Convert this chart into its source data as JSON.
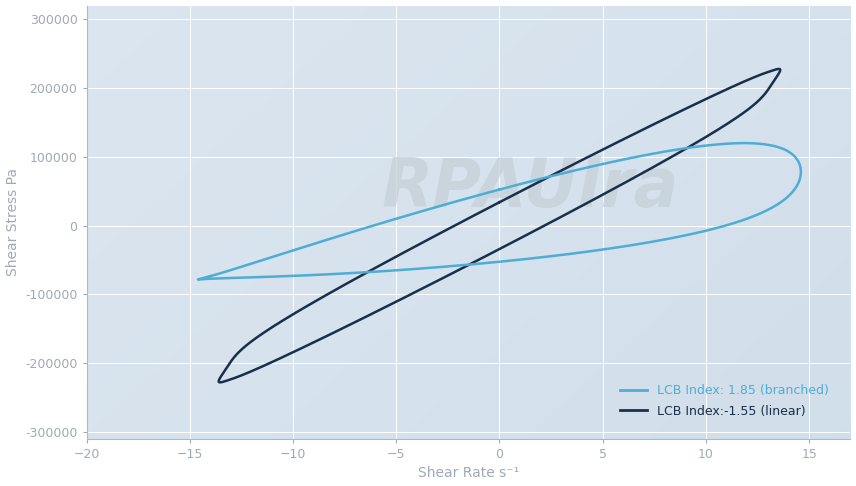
{
  "xlabel": "Shear Rate s⁻¹",
  "ylabel": "Shear Stress Pa",
  "xlim": [
    -20,
    17
  ],
  "ylim": [
    -310000,
    320000
  ],
  "yticks": [
    -300000,
    -200000,
    -100000,
    0,
    100000,
    200000,
    300000
  ],
  "xticks": [
    -20,
    -15,
    -10,
    -5,
    0,
    5,
    10,
    15
  ],
  "curve_branched_color": "#4eadd4",
  "curve_linear_color": "#1b2e4a",
  "legend_label_branched": "LCB Index: 1.85 (branched)",
  "legend_label_linear": "LCB Index:-1.55 (linear)",
  "tick_color": "#a0aab4",
  "label_color": "#a0aab4",
  "watermark_text": "RPAUlra",
  "bg_color_tl": [
    0.8,
    0.87,
    0.92
  ],
  "bg_color_br": [
    0.85,
    0.9,
    0.94
  ]
}
